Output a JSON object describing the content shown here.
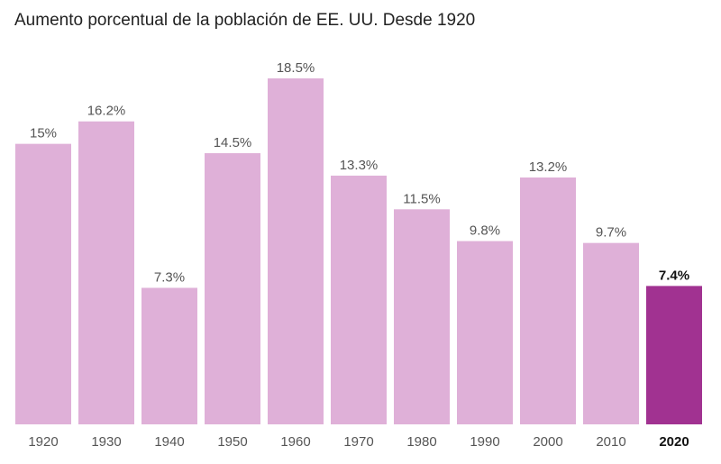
{
  "chart_data": {
    "type": "bar",
    "title": "Aumento porcentual de la población de EE. UU. Desde 1920",
    "xlabel": "",
    "ylabel": "",
    "categories": [
      "1920",
      "1930",
      "1940",
      "1950",
      "1960",
      "1970",
      "1980",
      "1990",
      "2000",
      "2010",
      "2020"
    ],
    "values": [
      15,
      16.2,
      7.3,
      14.5,
      18.5,
      13.3,
      11.5,
      9.8,
      13.2,
      9.7,
      7.4
    ],
    "value_labels": [
      "15%",
      "16.2%",
      "7.3%",
      "14.5%",
      "18.5%",
      "13.3%",
      "11.5%",
      "9.8%",
      "13.2%",
      "9.7%",
      "7.4%"
    ],
    "highlight_index": 10,
    "ylim": [
      0,
      18.5
    ],
    "grid": false,
    "colors": {
      "bar": "#dfb0d8",
      "highlight": "#a13291"
    }
  }
}
